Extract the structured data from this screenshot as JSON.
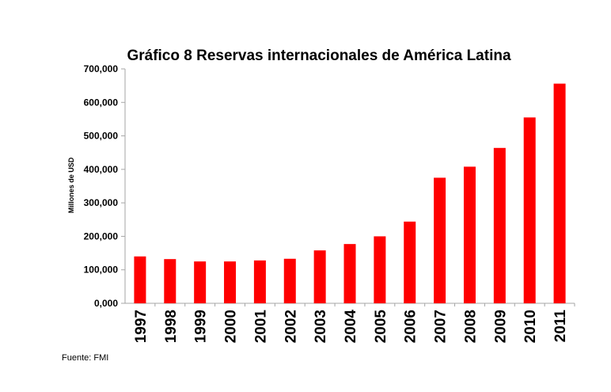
{
  "chart_data": {
    "type": "bar",
    "title": "Gráfico 8 Reservas internacionales  de América Latina",
    "xlabel": "",
    "ylabel": "Millones de USD",
    "categories": [
      "1997",
      "1998",
      "1999",
      "2000",
      "2001",
      "2002",
      "2003",
      "2004",
      "2005",
      "2006",
      "2007",
      "2008",
      "2009",
      "2010",
      "2011"
    ],
    "values": [
      140000,
      132000,
      125000,
      125000,
      128000,
      133000,
      158000,
      177000,
      200000,
      244000,
      375000,
      408000,
      464000,
      555000,
      656000
    ],
    "ylim": [
      0,
      700000
    ],
    "yticks": [
      0,
      100000,
      200000,
      300000,
      400000,
      500000,
      600000,
      700000
    ],
    "ytick_labels": [
      "0,000",
      "100,000",
      "200,000",
      "300,000",
      "400,000",
      "500,000",
      "600,000",
      "700,000"
    ],
    "bar_color": "#ff0000",
    "grid": false,
    "legend": "none"
  },
  "footer": {
    "source": "Fuente: FMI"
  }
}
